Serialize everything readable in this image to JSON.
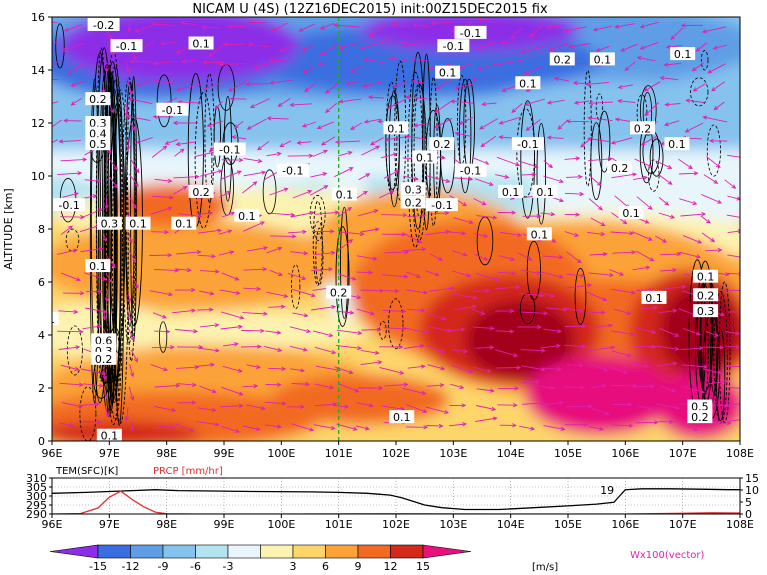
{
  "title": "NICAM U (4S) (12Z16DEC2015) init:00Z15DEC2015 fix",
  "colors": {
    "positive_scale": [
      "#fdf3b0",
      "#fdd56a",
      "#fba338",
      "#f26a22",
      "#d4281a",
      "#a3001b",
      "#e7107d"
    ],
    "negative_scale": [
      "#e8f6fb",
      "#b3e2f1",
      "#86c2ee",
      "#5f9ee6",
      "#3a6ee0",
      "#8c2ee8"
    ],
    "vector": "#e020b0",
    "contour": "#000000",
    "vline": "#22aa22",
    "prcp": "#e03030"
  },
  "chart_data": [
    {
      "type": "heatmap",
      "title": "NICAM U (4S) (12Z16DEC2015) init:00Z15DEC2015 fix",
      "ylabel": "ALTITUDE [km]",
      "x_ticks": [
        "96E",
        "97E",
        "98E",
        "99E",
        "100E",
        "101E",
        "102E",
        "103E",
        "104E",
        "105E",
        "106E",
        "107E",
        "108E"
      ],
      "y_ticks": [
        "0",
        "2",
        "4",
        "6",
        "8",
        "10",
        "12",
        "14",
        "16"
      ],
      "xlim": [
        96,
        108
      ],
      "ylim": [
        0,
        16
      ],
      "marker_longitude": 101,
      "contour_labels": [
        {
          "text": "-0.2",
          "x": 96.9,
          "y": 15.7
        },
        {
          "text": "0.1",
          "x": 98.6,
          "y": 15.0
        },
        {
          "text": "-0.1",
          "x": 97.3,
          "y": 14.9
        },
        {
          "text": "-0.1",
          "x": 103.0,
          "y": 14.9
        },
        {
          "text": "-0.1",
          "x": 103.3,
          "y": 15.4
        },
        {
          "text": "0.2",
          "x": 104.9,
          "y": 14.4
        },
        {
          "text": "0.1",
          "x": 105.6,
          "y": 14.4
        },
        {
          "text": "0.1",
          "x": 107.0,
          "y": 14.6
        },
        {
          "text": "0.1",
          "x": 102.9,
          "y": 13.9
        },
        {
          "text": "0.1",
          "x": 104.3,
          "y": 13.5
        },
        {
          "text": "0.2",
          "x": 96.8,
          "y": 12.9
        },
        {
          "text": "-0.1",
          "x": 98.1,
          "y": 12.5
        },
        {
          "text": "0.3",
          "x": 96.8,
          "y": 12.0
        },
        {
          "text": "0.1",
          "x": 102.0,
          "y": 11.8
        },
        {
          "text": "0.2",
          "x": 106.3,
          "y": 11.8
        },
        {
          "text": "0.4",
          "x": 96.8,
          "y": 11.6
        },
        {
          "text": "0.5",
          "x": 96.8,
          "y": 11.2
        },
        {
          "text": "0.2",
          "x": 102.8,
          "y": 11.2
        },
        {
          "text": "-0.1",
          "x": 104.3,
          "y": 11.2
        },
        {
          "text": "0.1",
          "x": 106.9,
          "y": 11.2
        },
        {
          "text": "-0.1",
          "x": 99.1,
          "y": 11.0
        },
        {
          "text": "0.1",
          "x": 102.5,
          "y": 10.7
        },
        {
          "text": "0.2",
          "x": 105.9,
          "y": 10.3
        },
        {
          "text": "-0.1",
          "x": 100.2,
          "y": 10.2
        },
        {
          "text": "-0.1",
          "x": 103.3,
          "y": 10.2
        },
        {
          "text": "0.3",
          "x": 102.3,
          "y": 9.5
        },
        {
          "text": "0.1",
          "x": 101.1,
          "y": 9.3
        },
        {
          "text": "0.2",
          "x": 98.6,
          "y": 9.4
        },
        {
          "text": "0.1",
          "x": 104.0,
          "y": 9.4
        },
        {
          "text": "0.1",
          "x": 104.6,
          "y": 9.4
        },
        {
          "text": "0.2",
          "x": 102.3,
          "y": 9.0
        },
        {
          "text": "-0.1",
          "x": 102.8,
          "y": 8.9
        },
        {
          "text": "-0.1",
          "x": 96.3,
          "y": 8.9
        },
        {
          "text": "0.1",
          "x": 99.4,
          "y": 8.5
        },
        {
          "text": "0.1",
          "x": 106.1,
          "y": 8.6
        },
        {
          "text": "0.1",
          "x": 98.3,
          "y": 8.2
        },
        {
          "text": "0.3",
          "x": 97.0,
          "y": 8.2
        },
        {
          "text": "0.1",
          "x": 97.5,
          "y": 8.2
        },
        {
          "text": "0.1",
          "x": 104.5,
          "y": 7.8
        },
        {
          "text": "0.1",
          "x": 96.8,
          "y": 6.6
        },
        {
          "text": "0.1",
          "x": 107.4,
          "y": 6.2
        },
        {
          "text": "0.2",
          "x": 101.0,
          "y": 5.6
        },
        {
          "text": "0.2",
          "x": 107.4,
          "y": 5.5
        },
        {
          "text": "0.1",
          "x": 106.5,
          "y": 5.4
        },
        {
          "text": "0.3",
          "x": 107.4,
          "y": 4.9
        },
        {
          "text": "0.1",
          "x": 95.9,
          "y": 4.6
        },
        {
          "text": "0.6",
          "x": 96.9,
          "y": 3.8
        },
        {
          "text": "0.3",
          "x": 96.9,
          "y": 3.4
        },
        {
          "text": "0.2",
          "x": 96.9,
          "y": 3.1
        },
        {
          "text": "0.1",
          "x": 102.1,
          "y": 0.9
        },
        {
          "text": "0.5",
          "x": 107.3,
          "y": 1.3
        },
        {
          "text": "0.2",
          "x": 107.3,
          "y": 0.9
        },
        {
          "text": "0.1",
          "x": 97.0,
          "y": 0.2
        }
      ]
    },
    {
      "type": "line",
      "left_label": "TEM(SFC)[K]",
      "right_label": "PRCP [mm/hr]",
      "left_ticks": [
        "310",
        "305",
        "300",
        "295",
        "290"
      ],
      "right_ticks": [
        "15",
        "10",
        "5",
        "0"
      ],
      "left_ylim": [
        290,
        310
      ],
      "right_ylim": [
        0,
        15
      ],
      "x_ticks": [
        "96E",
        "97E",
        "98E",
        "99E",
        "100E",
        "101E",
        "102E",
        "103E",
        "104E",
        "105E",
        "106E",
        "107E",
        "108E"
      ],
      "xlim": [
        96,
        108
      ],
      "series": [
        {
          "key": "tem",
          "x": [
            96.0,
            96.6,
            97.0,
            97.4,
            97.8,
            98.2,
            98.8,
            99.5,
            100.5,
            101.0,
            101.5,
            101.9,
            102.1,
            102.3,
            102.5,
            102.8,
            103.2,
            103.8,
            104.4,
            105.0,
            105.5,
            105.8,
            105.9,
            106.0,
            106.3,
            106.8,
            107.3,
            107.8,
            108.0
          ],
          "values": [
            301.5,
            302.0,
            302.5,
            303.0,
            303.5,
            303.0,
            302.8,
            302.5,
            302.3,
            302.0,
            301.5,
            300.5,
            299.0,
            297.0,
            295.0,
            293.5,
            292.5,
            292.5,
            293.5,
            294.5,
            295.5,
            296.5,
            300.0,
            303.5,
            304.0,
            304.0,
            303.8,
            303.5,
            303.5
          ]
        },
        {
          "key": "prcp",
          "x": [
            96.0,
            96.5,
            96.8,
            97.0,
            97.2,
            97.4,
            97.6,
            97.8,
            98.0,
            98.5,
            99.0,
            100.0,
            102.0,
            104.0,
            106.0,
            107.0,
            107.5,
            108.0
          ],
          "values": [
            0.0,
            0.2,
            2.5,
            7.0,
            9.5,
            6.0,
            3.0,
            0.8,
            0.1,
            0.0,
            0.0,
            0.0,
            0.1,
            0.0,
            0.0,
            0.3,
            0.5,
            0.4
          ]
        }
      ],
      "annotation": {
        "text": "19",
        "x": 105.7,
        "y": 303.8
      }
    },
    {
      "type": "legend",
      "colorbar_ticks": [
        "-15",
        "-12",
        "-9",
        "-6",
        "-3",
        "3",
        "6",
        "9",
        "12",
        "15"
      ],
      "unit": "[m/s]",
      "vector_label": "Wx100(vector)"
    }
  ]
}
